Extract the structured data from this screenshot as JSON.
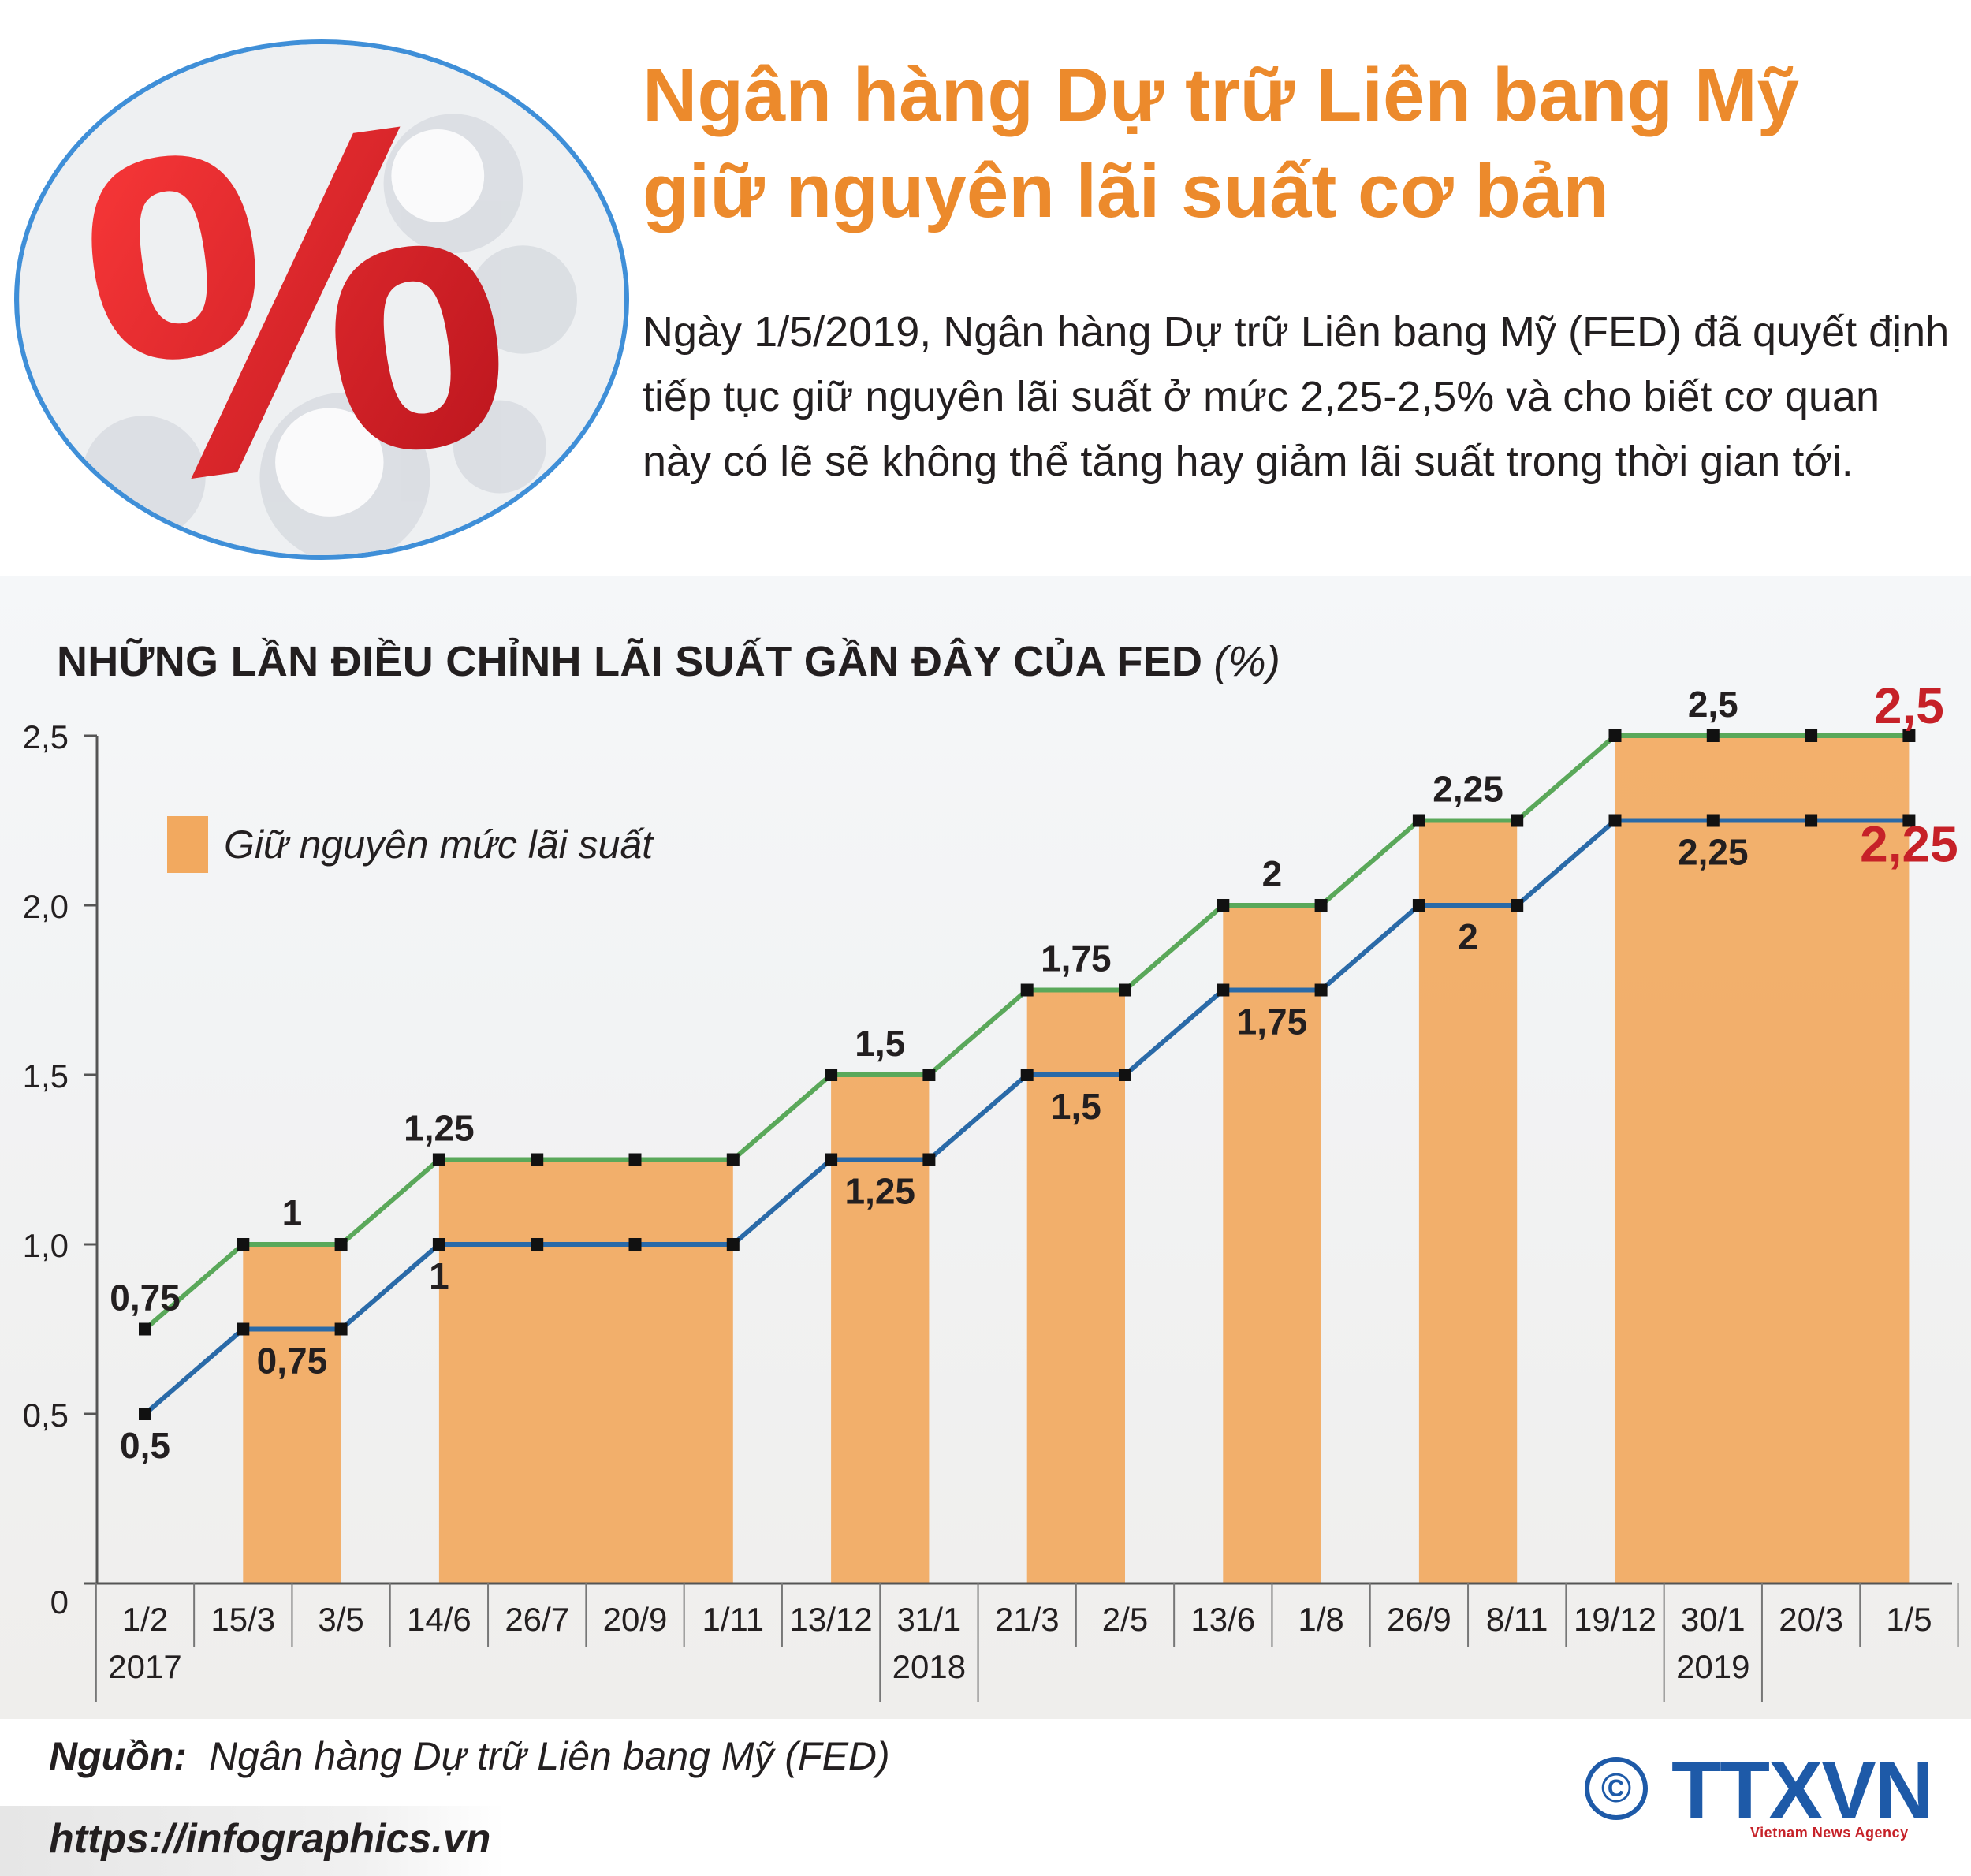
{
  "header": {
    "title_line1": "Ngân hàng Dự trữ Liên bang Mỹ",
    "title_line2": "giữ nguyên lãi suất cơ bản",
    "lead": "Ngày 1/5/2019, Ngân hàng Dự trữ Liên bang Mỹ (FED) đã quyết định tiếp tục giữ nguyên lãi suất ở mức 2,25-2,5% và cho biết cơ quan này có lẽ sẽ không thể tăng hay giảm lãi suất trong thời gian tới.",
    "image_symbol": "%"
  },
  "chart_data": {
    "type": "line",
    "title": "NHỮNG LẦN ĐIỀU CHỈNH LÃI SUẤT GẦN ĐÂY CỦA FED",
    "unit": "(%)",
    "categories": [
      "1/2",
      "15/3",
      "3/5",
      "14/6",
      "26/7",
      "20/9",
      "1/11",
      "13/12",
      "31/1",
      "21/3",
      "2/5",
      "13/6",
      "1/8",
      "26/9",
      "8/11",
      "19/12",
      "30/1",
      "20/3",
      "1/5"
    ],
    "year_labels": [
      {
        "index": 0,
        "label": "2017"
      },
      {
        "index": 8,
        "label": "2018"
      },
      {
        "index": 16,
        "label": "2019"
      }
    ],
    "series": [
      {
        "role": "upper",
        "color": "#5aa85a",
        "values": [
          0.75,
          1,
          1,
          1.25,
          1.25,
          1.25,
          1.25,
          1.5,
          1.5,
          1.75,
          1.75,
          2,
          2,
          2.25,
          2.25,
          2.5,
          2.5,
          2.5,
          2.5
        ]
      },
      {
        "role": "lower",
        "color": "#2a6aa8",
        "values": [
          0.5,
          0.75,
          0.75,
          1,
          1,
          1,
          1,
          1.25,
          1.25,
          1.5,
          1.5,
          1.75,
          1.75,
          2,
          2,
          2.25,
          2.25,
          2.25,
          2.25
        ]
      }
    ],
    "hold_periods": [
      {
        "from": 1,
        "to": 2
      },
      {
        "from": 3,
        "to": 6
      },
      {
        "from": 7,
        "to": 8
      },
      {
        "from": 9,
        "to": 10
      },
      {
        "from": 11,
        "to": 12
      },
      {
        "from": 13,
        "to": 14
      },
      {
        "from": 15,
        "to": 18
      }
    ],
    "data_labels": [
      {
        "series": "upper",
        "index": 0,
        "text": "0,75",
        "place": "above",
        "color": "#231f20"
      },
      {
        "series": "lower",
        "index": 0,
        "text": "0,5",
        "place": "below",
        "color": "#231f20"
      },
      {
        "series": "upper",
        "index": 1,
        "text": "1",
        "place": "above",
        "color": "#231f20",
        "span": [
          1,
          2
        ]
      },
      {
        "series": "lower",
        "index": 1,
        "text": "0,75",
        "place": "below",
        "color": "#231f20",
        "span": [
          1,
          2
        ]
      },
      {
        "series": "upper",
        "index": 3,
        "text": "1,25",
        "place": "above",
        "color": "#231f20"
      },
      {
        "series": "lower",
        "index": 3,
        "text": "1",
        "place": "below",
        "color": "#231f20"
      },
      {
        "series": "upper",
        "index": 7,
        "text": "1,5",
        "place": "above",
        "color": "#231f20",
        "span": [
          7,
          8
        ]
      },
      {
        "series": "lower",
        "index": 7,
        "text": "1,25",
        "place": "below",
        "color": "#231f20",
        "span": [
          7,
          8
        ]
      },
      {
        "series": "upper",
        "index": 9,
        "text": "1,75",
        "place": "above",
        "color": "#231f20",
        "span": [
          9,
          10
        ]
      },
      {
        "series": "lower",
        "index": 9,
        "text": "1,5",
        "place": "below",
        "color": "#231f20",
        "span": [
          9,
          10
        ]
      },
      {
        "series": "upper",
        "index": 11,
        "text": "2",
        "place": "above",
        "color": "#231f20",
        "span": [
          11,
          12
        ]
      },
      {
        "series": "lower",
        "index": 11,
        "text": "1,75",
        "place": "below",
        "color": "#231f20",
        "span": [
          11,
          12
        ]
      },
      {
        "series": "upper",
        "index": 13,
        "text": "2,25",
        "place": "above",
        "color": "#231f20",
        "span": [
          13,
          14
        ]
      },
      {
        "series": "lower",
        "index": 13,
        "text": "2",
        "place": "below",
        "color": "#231f20",
        "span": [
          13,
          14
        ]
      },
      {
        "series": "upper",
        "index": 16,
        "text": "2,5",
        "place": "above",
        "color": "#231f20"
      },
      {
        "series": "lower",
        "index": 16,
        "text": "2,25",
        "place": "below",
        "color": "#231f20"
      },
      {
        "series": "upper",
        "index": 18,
        "text": "2,5",
        "place": "end",
        "color": "#c62128"
      },
      {
        "series": "lower",
        "index": 18,
        "text": "2,25",
        "place": "end",
        "color": "#c62128"
      }
    ],
    "y_ticks": [
      {
        "value": 0,
        "label": "0"
      },
      {
        "value": 0.5,
        "label": "0,5"
      },
      {
        "value": 1.0,
        "label": "1,0"
      },
      {
        "value": 1.5,
        "label": "1,5"
      },
      {
        "value": 2.0,
        "label": "2,0"
      },
      {
        "value": 2.5,
        "label": "2,5"
      }
    ],
    "ylim": [
      0,
      2.5
    ],
    "legend": {
      "label": "Giữ nguyên mức lãi suất",
      "color": "#f2a95f",
      "placement": "top-left"
    },
    "grid": false
  },
  "footer": {
    "source_label": "Nguồn:",
    "source_text": "Ngân hàng Dự trữ Liên bang Mỹ (FED)",
    "url": "https://infographics.vn",
    "logo_text": "TTXVN",
    "logo_sub": "Vietnam News Agency",
    "copyright_symbol": "©"
  }
}
